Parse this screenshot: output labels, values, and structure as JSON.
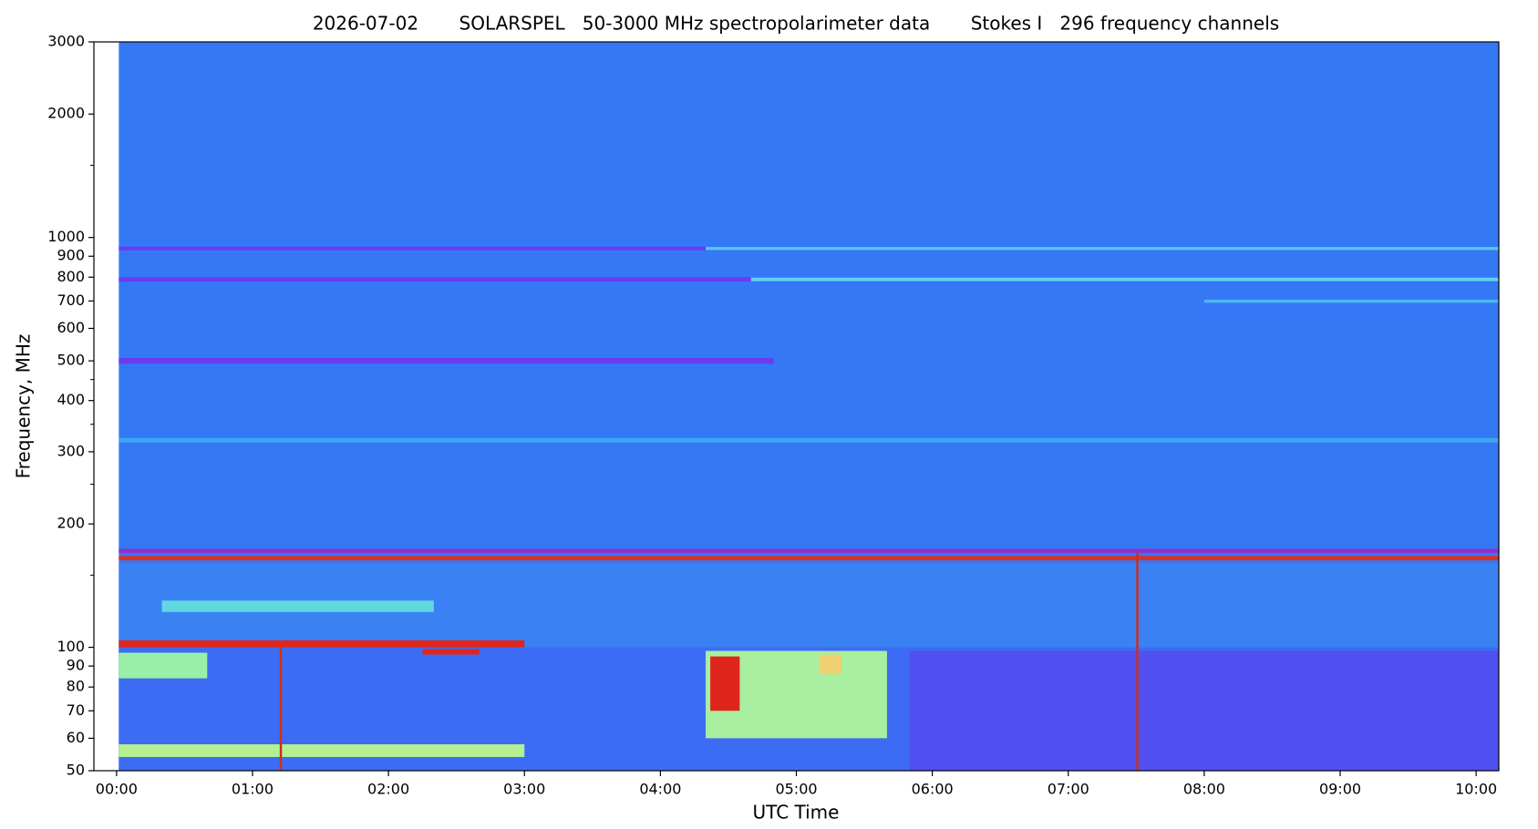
{
  "chart_data": {
    "type": "spectrogram",
    "title": "2026-07-02       SOLARSPEL   50-3000 MHz spectropolarimeter data       Stokes I   296 frequency channels",
    "xlabel": "UTC Time",
    "ylabel": "Frequency, MHz",
    "ylog": true,
    "xlim": [
      -10,
      610
    ],
    "ylim": [
      50,
      3000
    ],
    "xticks": [
      {
        "value": 0,
        "label": "00:00"
      },
      {
        "value": 60,
        "label": "01:00"
      },
      {
        "value": 120,
        "label": "02:00"
      },
      {
        "value": 180,
        "label": "03:00"
      },
      {
        "value": 240,
        "label": "04:00"
      },
      {
        "value": 300,
        "label": "05:00"
      },
      {
        "value": 360,
        "label": "06:00"
      },
      {
        "value": 420,
        "label": "07:00"
      },
      {
        "value": 480,
        "label": "08:00"
      },
      {
        "value": 540,
        "label": "09:00"
      },
      {
        "value": 600,
        "label": "10:00"
      }
    ],
    "yticks": [
      50,
      60,
      70,
      80,
      90,
      100,
      200,
      300,
      400,
      500,
      600,
      700,
      800,
      900,
      1000,
      2000,
      3000
    ],
    "yminor": [
      150,
      250,
      350,
      450,
      1500
    ],
    "background": {
      "t": [
        1,
        610
      ],
      "f": [
        50,
        3000
      ],
      "color": "#3478f6"
    },
    "features": [
      {
        "t": [
          1,
          610
        ],
        "f": [
          50,
          100
        ],
        "color": "#3d6cf4"
      },
      {
        "t": [
          350,
          610
        ],
        "f": [
          50,
          98
        ],
        "color": "#5150f0"
      },
      {
        "t": [
          1,
          610
        ],
        "f": [
          100,
          160
        ],
        "color": "#3a82f4"
      },
      {
        "t": [
          1,
          260
        ],
        "f": [
          930,
          950
        ],
        "color": "#6a3cf0"
      },
      {
        "t": [
          260,
          610
        ],
        "f": [
          932,
          948
        ],
        "color": "#58c8f4"
      },
      {
        "t": [
          1,
          280
        ],
        "f": [
          780,
          800
        ],
        "color": "#6a3cf0"
      },
      {
        "t": [
          280,
          610
        ],
        "f": [
          782,
          798
        ],
        "color": "#5fd0f0"
      },
      {
        "t": [
          1,
          290
        ],
        "f": [
          492,
          508
        ],
        "color": "#6a3cf0"
      },
      {
        "t": [
          480,
          610
        ],
        "f": [
          693,
          705
        ],
        "color": "#4fb6f4"
      },
      {
        "t": [
          1,
          610
        ],
        "f": [
          316,
          324
        ],
        "color": "#3fa4f4"
      },
      {
        "t": [
          1,
          610
        ],
        "f": [
          170,
          174
        ],
        "color": "#9030c8"
      },
      {
        "t": [
          1,
          610
        ],
        "f": [
          163,
          167
        ],
        "color": "#e0301c"
      },
      {
        "t": [
          20,
          140
        ],
        "f": [
          122,
          130
        ],
        "color": "#60d8e0"
      },
      {
        "t": [
          1,
          180
        ],
        "f": [
          100,
          104
        ],
        "color": "#e0261c"
      },
      {
        "t": [
          135,
          160
        ],
        "f": [
          96,
          99
        ],
        "color": "#e0261c"
      },
      {
        "t": [
          1,
          40
        ],
        "f": [
          84,
          97
        ],
        "color": "#98f0a8"
      },
      {
        "t": [
          1,
          180
        ],
        "f": [
          54,
          58
        ],
        "color": "#b4f090"
      },
      {
        "t": [
          260,
          340
        ],
        "f": [
          60,
          98
        ],
        "color": "#a8f0a0"
      },
      {
        "t": [
          262,
          275
        ],
        "f": [
          70,
          95
        ],
        "color": "#e0261c"
      },
      {
        "t": [
          310,
          320
        ],
        "f": [
          86,
          96
        ],
        "color": "#f0d070"
      },
      {
        "t": [
          72,
          73
        ],
        "f": [
          50,
          102
        ],
        "color": "#c83020"
      },
      {
        "t": [
          450,
          451
        ],
        "f": [
          50,
          170
        ],
        "color": "#c83020"
      }
    ]
  }
}
